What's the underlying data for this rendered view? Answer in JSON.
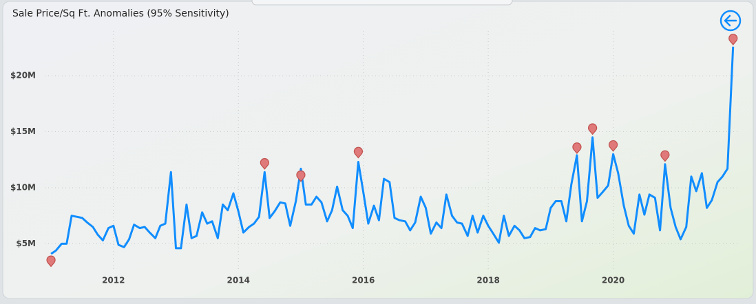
{
  "chart_data": {
    "type": "line",
    "title": "Sale Price/Sq Ft. Anomalies (95% Sensitivity)",
    "xlim": [
      2010.9,
      2022.0
    ],
    "xticks": [
      2012,
      2014,
      2016,
      2018,
      2020
    ],
    "ylim": [
      2.2,
      24
    ],
    "yticks": [
      {
        "value": 5,
        "label": "$5M"
      },
      {
        "value": 10,
        "label": "$10M"
      },
      {
        "value": 15,
        "label": "$15M"
      },
      {
        "value": 20,
        "label": "$20M"
      }
    ],
    "grid": true,
    "line": {
      "color": "#118dff",
      "x": [
        2011.0,
        2011.08,
        2011.17,
        2011.25,
        2011.33,
        2011.42,
        2011.5,
        2011.58,
        2011.67,
        2011.75,
        2011.83,
        2011.92,
        2012.0,
        2012.08,
        2012.17,
        2012.25,
        2012.33,
        2012.42,
        2012.5,
        2012.58,
        2012.67,
        2012.75,
        2012.83,
        2012.92,
        2013.0,
        2013.08,
        2013.17,
        2013.25,
        2013.33,
        2013.42,
        2013.5,
        2013.58,
        2013.67,
        2013.75,
        2013.83,
        2013.92,
        2014.0,
        2014.08,
        2014.17,
        2014.25,
        2014.33,
        2014.42,
        2014.5,
        2014.58,
        2014.67,
        2014.75,
        2014.83,
        2014.92,
        2015.0,
        2015.08,
        2015.17,
        2015.25,
        2015.33,
        2015.42,
        2015.5,
        2015.58,
        2015.67,
        2015.75,
        2015.83,
        2015.92,
        2016.0,
        2016.08,
        2016.17,
        2016.25,
        2016.33,
        2016.42,
        2016.5,
        2016.58,
        2016.67,
        2016.75,
        2016.83,
        2016.92,
        2017.0,
        2017.08,
        2017.17,
        2017.25,
        2017.33,
        2017.42,
        2017.5,
        2017.58,
        2017.67,
        2017.75,
        2017.83,
        2017.92,
        2018.0,
        2018.08,
        2018.17,
        2018.25,
        2018.33,
        2018.42,
        2018.5,
        2018.58,
        2018.67,
        2018.75,
        2018.83,
        2018.92,
        2019.0,
        2019.08,
        2019.17,
        2019.25,
        2019.33,
        2019.42,
        2019.5,
        2019.58,
        2019.67,
        2019.75,
        2019.83,
        2019.92,
        2020.0,
        2020.08,
        2020.17,
        2020.25,
        2020.33,
        2020.42,
        2020.5,
        2020.58,
        2020.67,
        2020.75,
        2020.83,
        2020.92,
        2021.0,
        2021.08,
        2021.17,
        2021.25,
        2021.33,
        2021.42,
        2021.5,
        2021.58,
        2021.67,
        2021.75,
        2021.83,
        2021.92
      ],
      "values": [
        4.1,
        4.4,
        5.0,
        5.0,
        7.5,
        7.4,
        7.3,
        6.9,
        6.5,
        5.8,
        5.3,
        6.4,
        6.6,
        4.9,
        4.7,
        5.4,
        6.7,
        6.4,
        6.5,
        6.0,
        5.5,
        6.6,
        6.8,
        11.4,
        4.6,
        4.6,
        8.5,
        5.5,
        5.7,
        7.8,
        6.8,
        7.0,
        5.5,
        8.5,
        8.0,
        9.5,
        7.9,
        6.0,
        6.5,
        6.8,
        7.4,
        11.4,
        7.3,
        7.9,
        8.7,
        8.6,
        6.6,
        8.8,
        11.7,
        8.5,
        8.5,
        9.2,
        8.7,
        7.0,
        8.0,
        10.1,
        8.0,
        7.5,
        6.4,
        12.3,
        9.6,
        6.8,
        8.4,
        7.1,
        10.8,
        10.5,
        7.3,
        7.1,
        7.0,
        6.2,
        6.9,
        9.2,
        8.2,
        5.9,
        6.9,
        6.4,
        9.4,
        7.5,
        6.9,
        6.8,
        5.7,
        7.5,
        6.0,
        7.5,
        6.6,
        5.9,
        5.1,
        7.5,
        5.7,
        6.6,
        6.2,
        5.5,
        5.6,
        6.4,
        6.2,
        6.3,
        8.2,
        8.8,
        8.8,
        7.0,
        10.3,
        12.9,
        7.0,
        8.8,
        14.5,
        9.1,
        9.6,
        10.2,
        13.0,
        11.3,
        8.4,
        6.6,
        5.9,
        9.4,
        7.6,
        9.4,
        9.1,
        6.2,
        12.1,
        8.2,
        6.5,
        5.4,
        6.5,
        11.0,
        9.7,
        11.3,
        8.2,
        8.9,
        10.5,
        11.0,
        11.7,
        22.6
      ]
    },
    "anomalies": {
      "color": "#e07a7a",
      "x": [
        2011.0,
        2014.42,
        2015.0,
        2015.92,
        2019.42,
        2019.67,
        2020.0,
        2020.83,
        2021.92
      ],
      "values": [
        3.4,
        12.1,
        11.0,
        13.1,
        13.5,
        15.2,
        13.7,
        12.8,
        23.2
      ]
    }
  }
}
